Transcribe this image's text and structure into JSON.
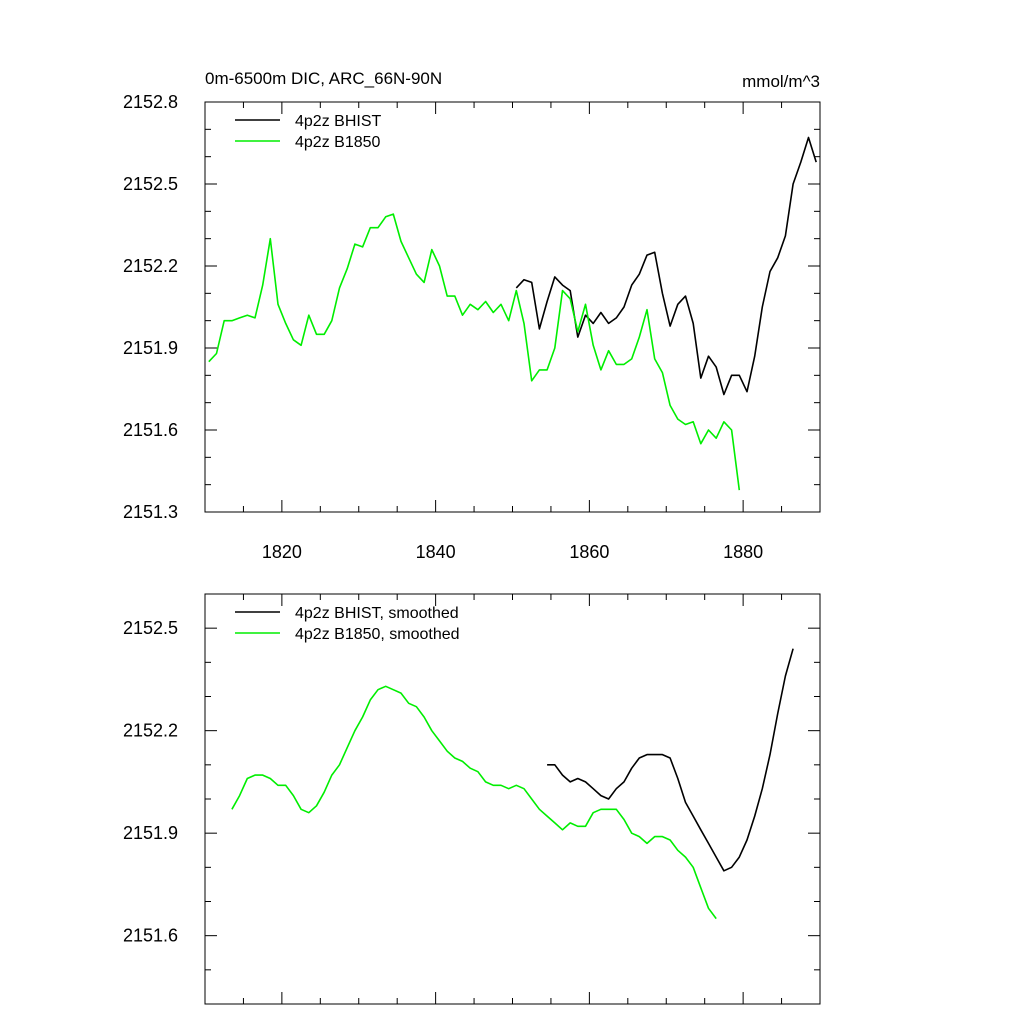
{
  "chart_data": [
    {
      "type": "line",
      "title": "0m-6500m DIC, ARC_66N-90N",
      "units": "mmol/m^3",
      "xlim": [
        1810,
        1890
      ],
      "ylim": [
        2151.3,
        2152.8
      ],
      "xticks": [
        1820,
        1840,
        1860,
        1880
      ],
      "xtick_labels": [
        "1820",
        "1840",
        "1860",
        "1880"
      ],
      "yticks": [
        2151.3,
        2151.6,
        2151.9,
        2152.2,
        2152.5,
        2152.8
      ],
      "ytick_labels": [
        "2151.3",
        "2151.6",
        "2151.9",
        "2152.2",
        "2152.5",
        "2152.8"
      ],
      "series": [
        {
          "name": "4p2z BHIST",
          "color": "#000000",
          "x": [
            1850.5,
            1851.5,
            1852.5,
            1853.5,
            1854.5,
            1855.5,
            1856.5,
            1857.5,
            1858.5,
            1859.5,
            1860.5,
            1861.5,
            1862.5,
            1863.5,
            1864.5,
            1865.5,
            1866.5,
            1867.5,
            1868.5,
            1869.5,
            1870.5,
            1871.5,
            1872.5,
            1873.5,
            1874.5,
            1875.5,
            1876.5,
            1877.5,
            1878.5,
            1879.5,
            1880.5,
            1881.5,
            1882.5,
            1883.5,
            1884.5,
            1885.5,
            1886.5,
            1887.5,
            1888.5,
            1889.5
          ],
          "y": [
            2152.12,
            2152.15,
            2152.14,
            2151.97,
            2152.07,
            2152.16,
            2152.13,
            2152.11,
            2151.94,
            2152.02,
            2151.99,
            2152.03,
            2151.99,
            2152.01,
            2152.05,
            2152.13,
            2152.17,
            2152.24,
            2152.25,
            2152.1,
            2151.98,
            2152.06,
            2152.09,
            2151.99,
            2151.79,
            2151.87,
            2151.83,
            2151.73,
            2151.8,
            2151.8,
            2151.74,
            2151.87,
            2152.05,
            2152.18,
            2152.23,
            2152.31,
            2152.5,
            2152.58,
            2152.67,
            2152.58
          ]
        },
        {
          "name": "4p2z B1850",
          "color": "#00ee00",
          "x": [
            1810.5,
            1811.5,
            1812.5,
            1813.5,
            1814.5,
            1815.5,
            1816.5,
            1817.5,
            1818.5,
            1819.5,
            1820.5,
            1821.5,
            1822.5,
            1823.5,
            1824.5,
            1825.5,
            1826.5,
            1827.5,
            1828.5,
            1829.5,
            1830.5,
            1831.5,
            1832.5,
            1833.5,
            1834.5,
            1835.5,
            1836.5,
            1837.5,
            1838.5,
            1839.5,
            1840.5,
            1841.5,
            1842.5,
            1843.5,
            1844.5,
            1845.5,
            1846.5,
            1847.5,
            1848.5,
            1849.5,
            1850.5,
            1851.5,
            1852.5,
            1853.5,
            1854.5,
            1855.5,
            1856.5,
            1857.5,
            1858.5,
            1859.5,
            1860.5,
            1861.5,
            1862.5,
            1863.5,
            1864.5,
            1865.5,
            1866.5,
            1867.5,
            1868.5,
            1869.5,
            1870.5,
            1871.5,
            1872.5,
            1873.5,
            1874.5,
            1875.5,
            1876.5,
            1877.5,
            1878.5,
            1879.5
          ],
          "y": [
            2151.85,
            2151.88,
            2152.0,
            2152.0,
            2152.01,
            2152.02,
            2152.01,
            2152.13,
            2152.3,
            2152.06,
            2151.99,
            2151.93,
            2151.91,
            2152.02,
            2151.95,
            2151.95,
            2152.0,
            2152.12,
            2152.19,
            2152.28,
            2152.27,
            2152.34,
            2152.34,
            2152.38,
            2152.39,
            2152.29,
            2152.23,
            2152.17,
            2152.14,
            2152.26,
            2152.2,
            2152.09,
            2152.09,
            2152.02,
            2152.06,
            2152.04,
            2152.07,
            2152.03,
            2152.06,
            2152.0,
            2152.11,
            2151.99,
            2151.78,
            2151.82,
            2151.82,
            2151.9,
            2152.11,
            2152.08,
            2151.96,
            2152.06,
            2151.91,
            2151.82,
            2151.89,
            2151.84,
            2151.84,
            2151.86,
            2151.94,
            2152.04,
            2151.86,
            2151.81,
            2151.69,
            2151.64,
            2151.62,
            2151.63,
            2151.55,
            2151.6,
            2151.57,
            2151.63,
            2151.6,
            2151.38
          ]
        }
      ]
    },
    {
      "type": "line",
      "title": "",
      "units": "",
      "xlim": [
        1810,
        1890
      ],
      "ylim": [
        2151.4,
        2152.6
      ],
      "xticks": [
        1820,
        1840,
        1860,
        1880
      ],
      "xtick_labels": [],
      "yticks": [
        2151.6,
        2151.9,
        2152.2,
        2152.5
      ],
      "ytick_labels": [
        "2151.6",
        "2151.9",
        "2152.2",
        "2152.5"
      ],
      "series": [
        {
          "name": "4p2z BHIST, smoothed",
          "color": "#000000",
          "x": [
            1854.5,
            1855.5,
            1856.5,
            1857.5,
            1858.5,
            1859.5,
            1860.5,
            1861.5,
            1862.5,
            1863.5,
            1864.5,
            1865.5,
            1866.5,
            1867.5,
            1868.5,
            1869.5,
            1870.5,
            1871.5,
            1872.5,
            1873.5,
            1874.5,
            1875.5,
            1876.5,
            1877.5,
            1878.5,
            1879.5,
            1880.5,
            1881.5,
            1882.5,
            1883.5,
            1884.5,
            1885.5,
            1886.5
          ],
          "y": [
            2152.1,
            2152.1,
            2152.07,
            2152.05,
            2152.06,
            2152.05,
            2152.03,
            2152.01,
            2152.0,
            2152.03,
            2152.05,
            2152.09,
            2152.12,
            2152.13,
            2152.13,
            2152.13,
            2152.12,
            2152.06,
            2151.99,
            2151.95,
            2151.91,
            2151.87,
            2151.83,
            2151.79,
            2151.8,
            2151.83,
            2151.88,
            2151.95,
            2152.03,
            2152.13,
            2152.25,
            2152.36,
            2152.44
          ]
        },
        {
          "name": "4p2z B1850, smoothed",
          "color": "#00ee00",
          "x": [
            1813.5,
            1814.5,
            1815.5,
            1816.5,
            1817.5,
            1818.5,
            1819.5,
            1820.5,
            1821.5,
            1822.5,
            1823.5,
            1824.5,
            1825.5,
            1826.5,
            1827.5,
            1828.5,
            1829.5,
            1830.5,
            1831.5,
            1832.5,
            1833.5,
            1834.5,
            1835.5,
            1836.5,
            1837.5,
            1838.5,
            1839.5,
            1840.5,
            1841.5,
            1842.5,
            1843.5,
            1844.5,
            1845.5,
            1846.5,
            1847.5,
            1848.5,
            1849.5,
            1850.5,
            1851.5,
            1852.5,
            1853.5,
            1854.5,
            1855.5,
            1856.5,
            1857.5,
            1858.5,
            1859.5,
            1860.5,
            1861.5,
            1862.5,
            1863.5,
            1864.5,
            1865.5,
            1866.5,
            1867.5,
            1868.5,
            1869.5,
            1870.5,
            1871.5,
            1872.5,
            1873.5,
            1874.5,
            1875.5,
            1876.5
          ],
          "y": [
            2151.97,
            2152.01,
            2152.06,
            2152.07,
            2152.07,
            2152.06,
            2152.04,
            2152.04,
            2152.01,
            2151.97,
            2151.96,
            2151.98,
            2152.02,
            2152.07,
            2152.1,
            2152.15,
            2152.2,
            2152.24,
            2152.29,
            2152.32,
            2152.33,
            2152.32,
            2152.31,
            2152.28,
            2152.27,
            2152.24,
            2152.2,
            2152.17,
            2152.14,
            2152.12,
            2152.11,
            2152.09,
            2152.08,
            2152.05,
            2152.04,
            2152.04,
            2152.03,
            2152.04,
            2152.03,
            2152.0,
            2151.97,
            2151.95,
            2151.93,
            2151.91,
            2151.93,
            2151.92,
            2151.92,
            2151.96,
            2151.97,
            2151.97,
            2151.97,
            2151.94,
            2151.9,
            2151.89,
            2151.87,
            2151.89,
            2151.89,
            2151.88,
            2151.85,
            2151.83,
            2151.8,
            2151.74,
            2151.68,
            2151.65
          ]
        }
      ]
    }
  ]
}
